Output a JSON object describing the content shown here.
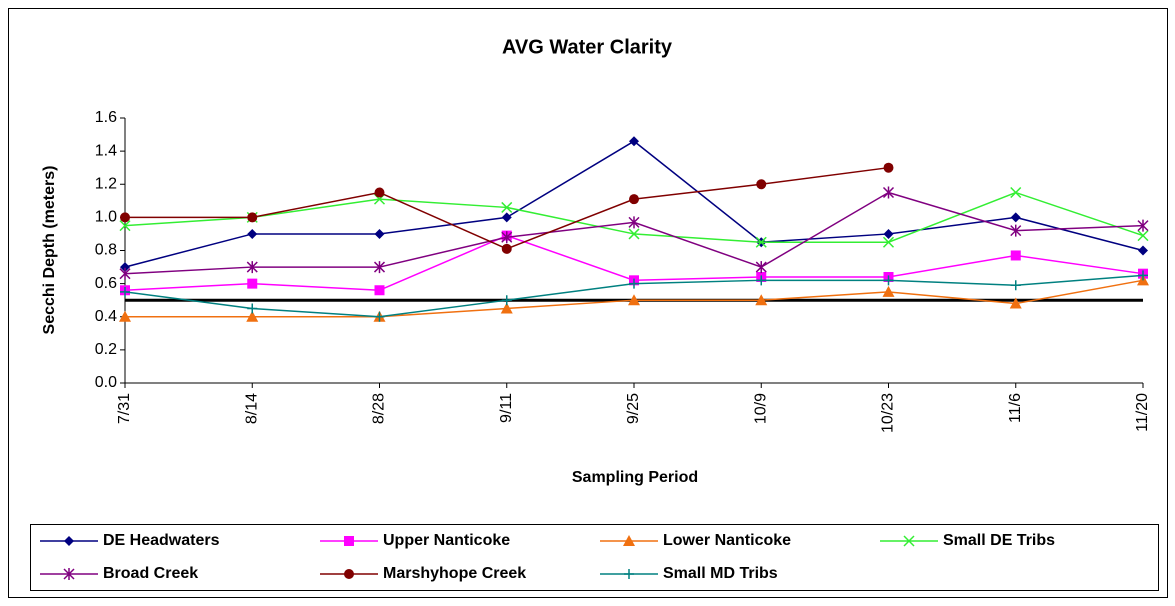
{
  "chart_data": {
    "type": "line",
    "title": "AVG Water Clarity",
    "y_label": "Secchi Depth (meters)",
    "x_label": "Sampling Period",
    "categories": [
      "7/31",
      "8/14",
      "8/28",
      "9/11",
      "9/25",
      "10/9",
      "10/23",
      "11/6",
      "11/20"
    ],
    "series": [
      {
        "name": "DE Headwaters",
        "color": "#000080",
        "marker": "diamond",
        "values": [
          0.7,
          0.9,
          0.9,
          1.0,
          1.46,
          0.85,
          0.9,
          1.0,
          0.8
        ]
      },
      {
        "name": "Upper Nanticoke",
        "color": "#ff00ff",
        "marker": "square",
        "values": [
          0.56,
          0.6,
          0.56,
          0.89,
          0.62,
          0.64,
          0.64,
          0.77,
          0.66
        ]
      },
      {
        "name": "Lower Nanticoke",
        "color": "#f07010",
        "marker": "triangle",
        "values": [
          0.4,
          0.4,
          0.4,
          0.45,
          0.5,
          0.5,
          0.55,
          0.48,
          0.62
        ]
      },
      {
        "name": "Small DE Tribs",
        "color": "#33ee33",
        "marker": "x",
        "values": [
          0.95,
          1.0,
          1.11,
          1.06,
          0.9,
          0.85,
          0.85,
          1.15,
          0.89
        ]
      },
      {
        "name": "Broad Creek",
        "color": "#800080",
        "marker": "star",
        "values": [
          0.66,
          0.7,
          0.7,
          0.88,
          0.97,
          0.7,
          1.15,
          0.92,
          0.95
        ]
      },
      {
        "name": "Marshyhope Creek",
        "color": "#800000",
        "marker": "circle",
        "values": [
          1.0,
          1.0,
          1.15,
          0.81,
          1.11,
          1.2,
          1.3,
          null,
          null
        ]
      },
      {
        "name": "Small MD Tribs",
        "color": "#008080",
        "marker": "plus",
        "values": [
          0.55,
          0.45,
          0.4,
          0.5,
          0.6,
          0.62,
          0.62,
          0.59,
          0.65
        ]
      }
    ],
    "reference_line": {
      "value": 0.5,
      "color": "#000000"
    },
    "ylim": [
      0,
      1.6
    ],
    "yticks": [
      {
        "value": 0,
        "label": "0.0"
      },
      0.2,
      0.4,
      0.6,
      0.8,
      {
        "value": 1,
        "label": "1.0"
      },
      1.2,
      1.4,
      1.6
    ],
    "grid": false,
    "legend": "bottom"
  }
}
